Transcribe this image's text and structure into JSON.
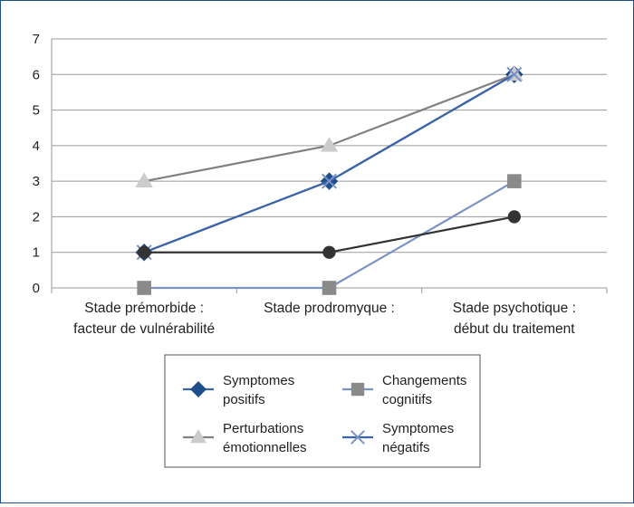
{
  "chart_data": {
    "type": "line",
    "title": "",
    "xlabel": "",
    "ylabel": "",
    "ylim": [
      0,
      7
    ],
    "y_ticks": [
      0,
      1,
      2,
      3,
      4,
      5,
      6,
      7
    ],
    "grid": "horizontal",
    "legend_placement": "bottom",
    "categories": [
      [
        "Stade prémorbide :",
        "facteur de vulnérabilité"
      ],
      [
        "Stade prodromyque :"
      ],
      [
        "Stade psychotique :",
        "début du traitement"
      ]
    ],
    "series": [
      {
        "name": "Symptomes positifs",
        "legend_lines": [
          "Symptomes",
          "positifs"
        ],
        "values": [
          1,
          3,
          6
        ],
        "color": "#3b63a8",
        "marker": "diamond",
        "marker_color": "#1f4e8c"
      },
      {
        "name": "Changements cognitifs",
        "legend_lines": [
          "Changements",
          "cognitifs"
        ],
        "values": [
          0,
          0,
          3
        ],
        "color": "#7a93c4",
        "marker": "square",
        "marker_color": "#8a8a8a"
      },
      {
        "name": "Perturbations émotionnelles",
        "legend_lines": [
          "Perturbations",
          "émotionnelles"
        ],
        "values": [
          3,
          4,
          6
        ],
        "color": "#808080",
        "marker": "triangle",
        "marker_color": "#cccccc"
      },
      {
        "name": "Symptomes négatifs",
        "legend_lines": [
          "Symptomes",
          "négatifs"
        ],
        "values": [
          1,
          3,
          6
        ],
        "color": "#3b63a8",
        "marker": "x",
        "marker_color": "#7a93c4"
      },
      {
        "name": "",
        "legend_lines": [],
        "values": [
          1,
          1,
          2
        ],
        "color": "#333333",
        "marker": "circle",
        "marker_color": "#333333",
        "in_legend": false
      }
    ]
  }
}
